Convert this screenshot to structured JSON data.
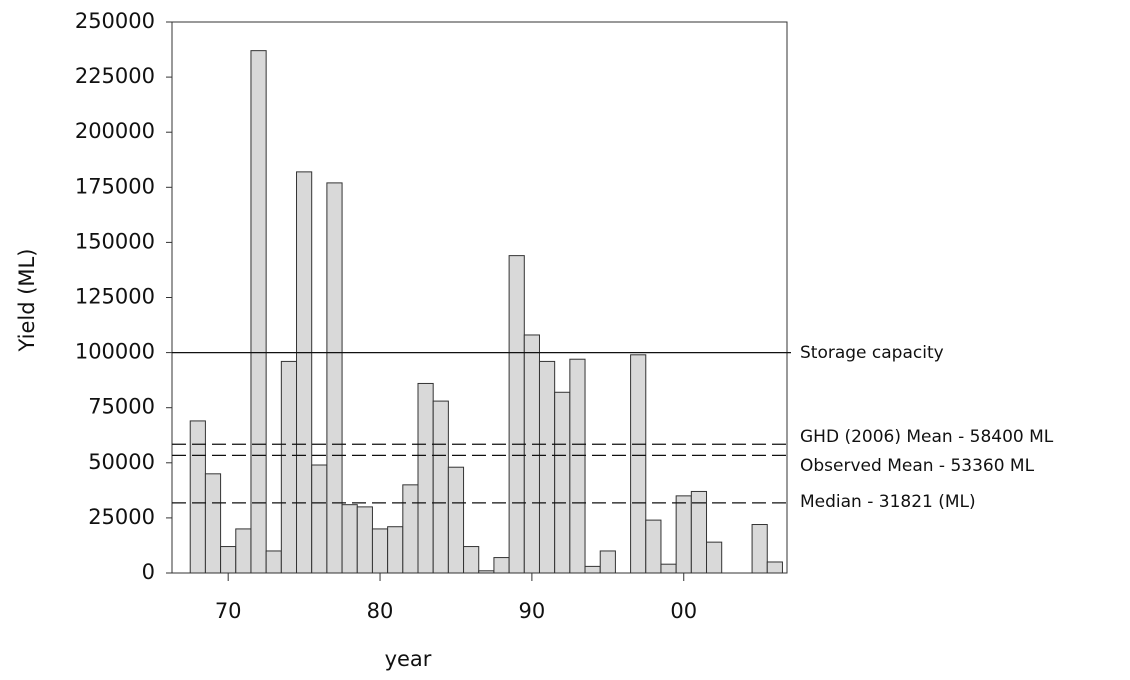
{
  "chart_data": {
    "type": "bar",
    "x_label": "year",
    "y_label": "Yield (ML)",
    "x": [
      1968,
      1969,
      1970,
      1971,
      1972,
      1973,
      1974,
      1975,
      1976,
      1977,
      1978,
      1979,
      1980,
      1981,
      1982,
      1983,
      1984,
      1985,
      1986,
      1987,
      1988,
      1989,
      1990,
      1991,
      1992,
      1993,
      1994,
      1995,
      1996,
      1997,
      1998,
      1999,
      2000,
      2001,
      2002,
      2003,
      2004,
      2005,
      2006
    ],
    "values": [
      69000,
      45000,
      12000,
      20000,
      237000,
      10000,
      96000,
      182000,
      49000,
      177000,
      31000,
      30000,
      20000,
      21000,
      40000,
      86000,
      78000,
      48000,
      12000,
      1000,
      7000,
      144000,
      108000,
      96000,
      82000,
      97000,
      3000,
      10000,
      0,
      99000,
      24000,
      4000,
      35000,
      37000,
      14000,
      0,
      0,
      22000,
      5000
    ],
    "color": "#d9d9d9",
    "xlim": [
      1966.3,
      2006.8
    ],
    "xticks": [
      {
        "value": 1970,
        "label": "70"
      },
      {
        "value": 1980,
        "label": "80"
      },
      {
        "value": 1990,
        "label": "90"
      },
      {
        "value": 2000,
        "label": "00"
      }
    ],
    "ylim": [
      0,
      250000
    ],
    "yticks": [
      0,
      25000,
      50000,
      75000,
      100000,
      125000,
      150000,
      175000,
      200000,
      225000,
      250000
    ],
    "reference_lines": [
      {
        "label": "Storage capacity",
        "value": 100000,
        "style": "solid"
      },
      {
        "label": "GHD (2006) Mean - 58400 ML",
        "value": 58400,
        "style": "dashed"
      },
      {
        "label": "Observed Mean - 53360 ML",
        "value": 53360,
        "style": "dashed"
      },
      {
        "label": "Median - 31821 (ML)",
        "value": 31821,
        "style": "dashed"
      }
    ]
  }
}
